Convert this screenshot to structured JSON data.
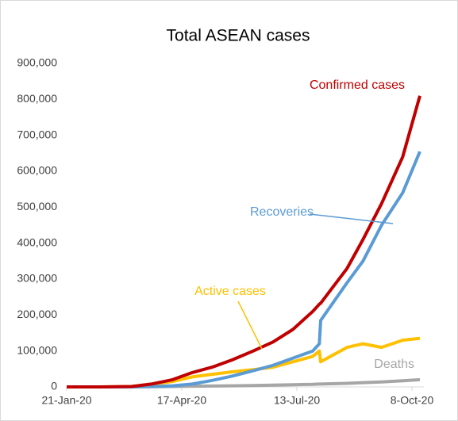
{
  "chart_data": {
    "type": "line",
    "title": "Total ASEAN cases",
    "x": [
      "2020-01-21",
      "2020-02-15",
      "2020-03-10",
      "2020-03-25",
      "2020-04-10",
      "2020-04-25",
      "2020-05-10",
      "2020-05-25",
      "2020-06-10",
      "2020-06-25",
      "2020-07-10",
      "2020-07-25",
      "2020-07-30",
      "2020-07-31",
      "2020-08-20",
      "2020-09-01",
      "2020-09-15",
      "2020-10-01",
      "2020-10-14"
    ],
    "series": [
      {
        "name": "Confirmed cases",
        "color": "#c00000",
        "values": [
          0,
          0,
          1000,
          8000,
          20000,
          40000,
          55000,
          75000,
          100000,
          125000,
          160000,
          210000,
          230000,
          233000,
          330000,
          410000,
          510000,
          640000,
          810000
        ]
      },
      {
        "name": "Recoveries",
        "color": "#5b9bd5",
        "values": [
          0,
          0,
          0,
          1000,
          3000,
          8000,
          18000,
          30000,
          45000,
          60000,
          80000,
          100000,
          120000,
          185000,
          290000,
          350000,
          450000,
          540000,
          655000
        ]
      },
      {
        "name": "Active cases",
        "color": "#ffc000",
        "values": [
          0,
          0,
          1000,
          7000,
          15000,
          28000,
          35000,
          42000,
          48000,
          55000,
          70000,
          85000,
          100000,
          70000,
          110000,
          120000,
          110000,
          130000,
          135000
        ]
      },
      {
        "name": "Deaths",
        "color": "#a6a6a6",
        "values": [
          0,
          0,
          0,
          500,
          1000,
          2000,
          2500,
          3000,
          4000,
          5000,
          6000,
          7000,
          8000,
          8000,
          10000,
          12000,
          14000,
          17000,
          20000
        ]
      }
    ],
    "xlim": [
      "2020-01-21",
      "2020-10-17"
    ],
    "xticks": [
      {
        "value": "2020-01-21",
        "label": "21-Jan-20"
      },
      {
        "value": "2020-04-17",
        "label": "17-Apr-20"
      },
      {
        "value": "2020-07-13",
        "label": "13-Jul-20"
      },
      {
        "value": "2020-10-08",
        "label": "8-Oct-20"
      }
    ],
    "ylim": [
      0,
      900000
    ],
    "yticks": [
      0,
      {
        "value": 100000,
        "label": "100,000"
      },
      {
        "value": 200000,
        "label": "200,000"
      },
      {
        "value": 300000,
        "label": "300,000"
      },
      {
        "value": 400000,
        "label": "400,000"
      },
      {
        "value": 500000,
        "label": "500,000"
      },
      {
        "value": 600000,
        "label": "600,000"
      },
      {
        "value": 700000,
        "label": "700,000"
      },
      {
        "value": 800000,
        "label": "800,000"
      },
      {
        "value": 900000,
        "label": "900,000"
      }
    ],
    "grid": false
  }
}
